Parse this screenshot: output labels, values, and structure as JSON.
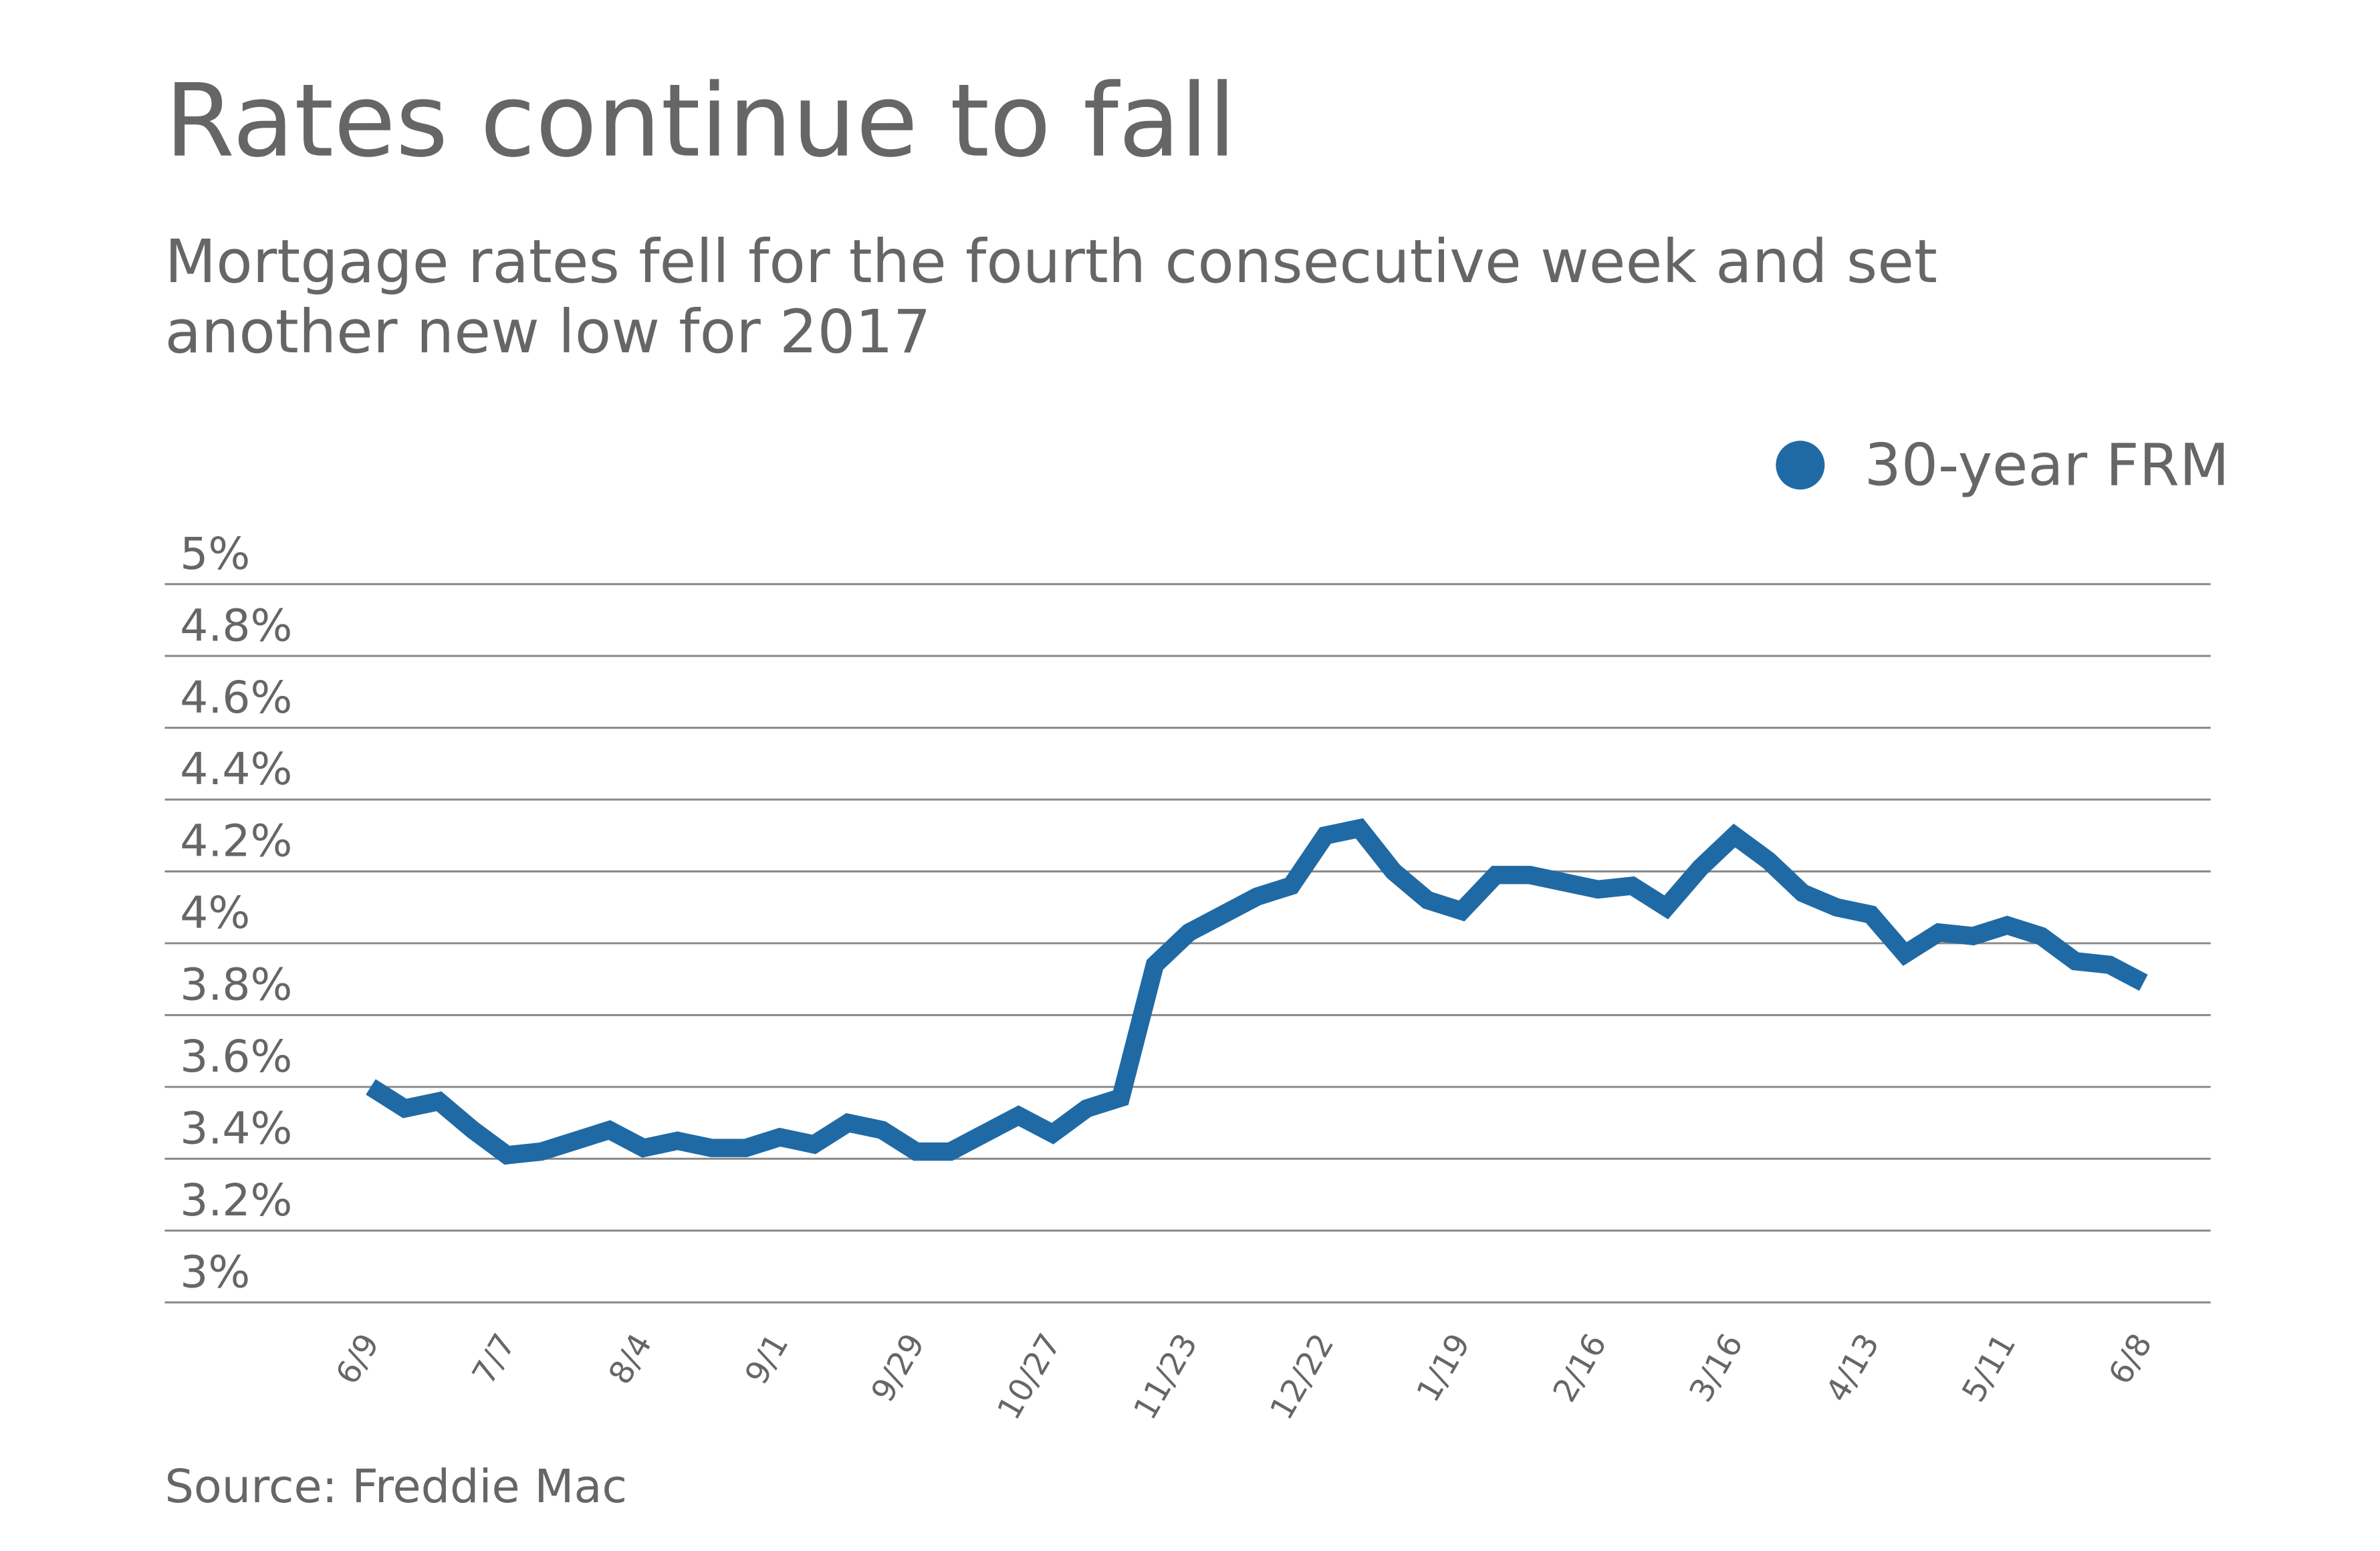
{
  "chart_data": {
    "type": "line",
    "title": "Rates continue to fall",
    "subtitle": "Mortgage rates fell for the fourth consecutive week and set another new low for 2017",
    "source": "Source: Freddie Mac",
    "categories": [
      "6/9",
      null,
      null,
      null,
      "7/7",
      null,
      null,
      null,
      "8/4",
      null,
      null,
      null,
      "9/1",
      null,
      null,
      null,
      "9/29",
      null,
      null,
      null,
      "10/27",
      null,
      null,
      null,
      "11/23",
      null,
      null,
      null,
      "12/22",
      null,
      null,
      null,
      "1/19",
      null,
      null,
      null,
      "2/16",
      null,
      null,
      null,
      "3/16",
      null,
      null,
      null,
      "4/13",
      null,
      null,
      null,
      "5/11",
      null,
      null,
      null,
      "6/8"
    ],
    "series": [
      {
        "name": "30-year FRM",
        "color": "#1f6aa5",
        "values": [
          3.6,
          3.54,
          3.56,
          3.48,
          3.41,
          3.42,
          3.45,
          3.48,
          3.43,
          3.45,
          3.43,
          3.43,
          3.46,
          3.44,
          3.5,
          3.48,
          3.42,
          3.42,
          3.47,
          3.52,
          3.47,
          3.54,
          3.57,
          3.94,
          4.03,
          4.08,
          4.13,
          4.16,
          4.3,
          4.32,
          4.2,
          4.12,
          4.09,
          4.19,
          4.19,
          4.17,
          4.15,
          4.16,
          4.1,
          4.21,
          4.3,
          4.23,
          4.14,
          4.1,
          4.08,
          3.97,
          4.03,
          4.02,
          4.05,
          4.02,
          3.95,
          3.94,
          3.89
        ]
      }
    ],
    "ylim": [
      3,
      5
    ],
    "yticks": [
      {
        "value": 3,
        "label": "3%"
      },
      {
        "value": 3.2,
        "label": "3.2%"
      },
      {
        "value": 3.4,
        "label": "3.4%"
      },
      {
        "value": 3.6,
        "label": "3.6%"
      },
      {
        "value": 3.8,
        "label": "3.8%"
      },
      {
        "value": 4,
        "label": "4%"
      },
      {
        "value": 4.2,
        "label": "4.2%"
      },
      {
        "value": 4.4,
        "label": "4.4%"
      },
      {
        "value": 4.6,
        "label": "4.6%"
      },
      {
        "value": 4.8,
        "label": "4.8%"
      },
      {
        "value": 5,
        "label": "5%"
      }
    ],
    "grid": true,
    "legend": "top-right"
  }
}
